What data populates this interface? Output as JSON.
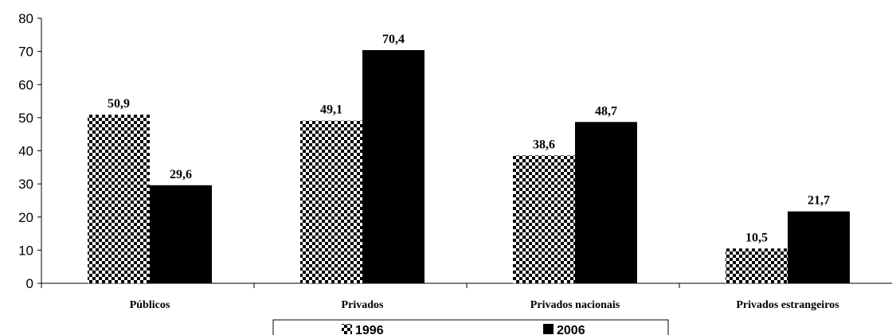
{
  "chart_data": {
    "type": "bar",
    "title": "",
    "xlabel": "",
    "ylabel": "",
    "ylim": [
      0,
      80
    ],
    "yticks": [
      0,
      10,
      20,
      30,
      40,
      50,
      60,
      70,
      80
    ],
    "categories": [
      "Públicos",
      "Privados",
      "Privados nacionais",
      "Privados estrangeiros"
    ],
    "series": [
      {
        "name": "1996",
        "values": [
          50.9,
          49.1,
          38.6,
          10.5
        ],
        "labels": [
          "50,9",
          "49,1",
          "38,6",
          "10,5"
        ],
        "pattern": "checkerboard"
      },
      {
        "name": "2006",
        "values": [
          29.6,
          70.4,
          48.7,
          21.7
        ],
        "labels": [
          "29,6",
          "70,4",
          "48,7",
          "21,7"
        ],
        "color": "#000000"
      }
    ],
    "grid": false,
    "legend": "bottom"
  }
}
